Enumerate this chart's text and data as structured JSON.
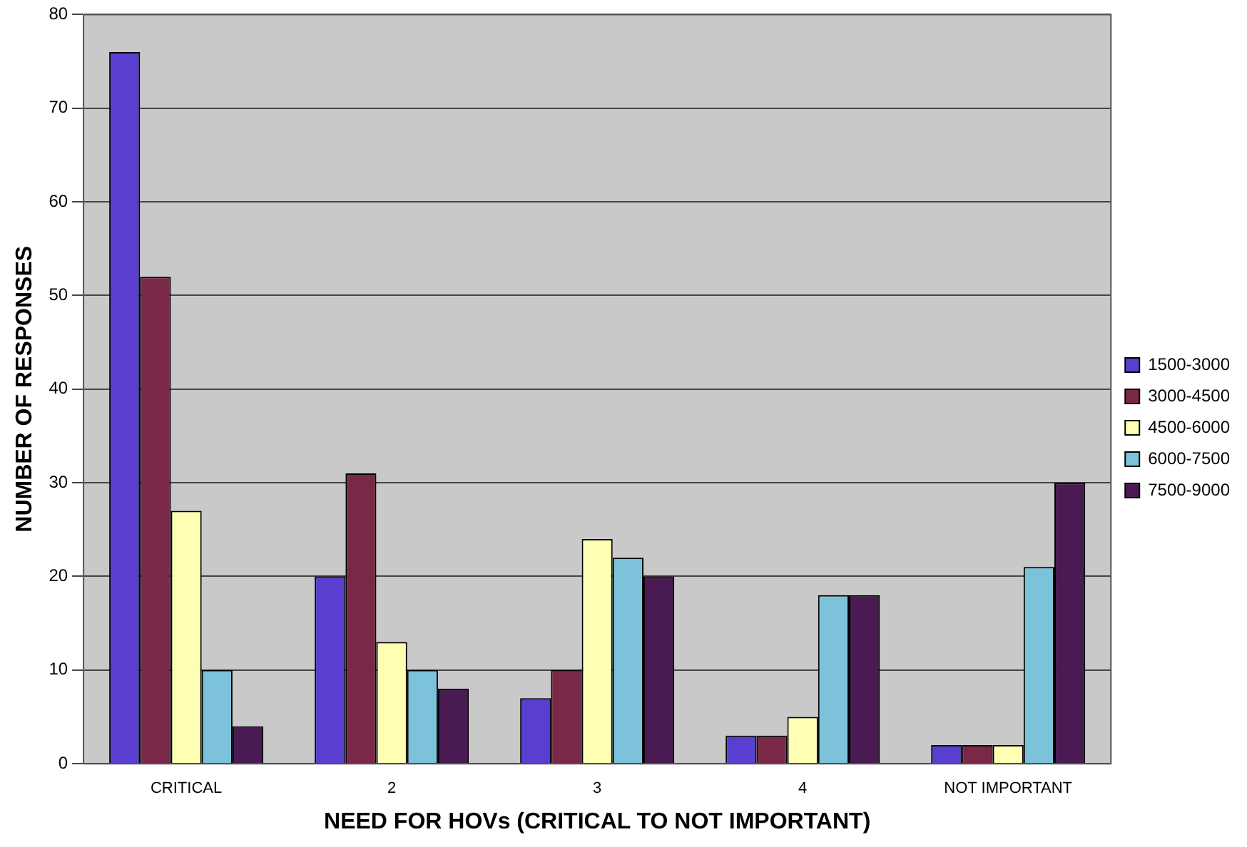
{
  "chart_data": {
    "type": "bar",
    "xlabel": "NEED FOR HOVs (CRITICAL TO NOT IMPORTANT)",
    "ylabel": "NUMBER OF RESPONSES",
    "categories": [
      "CRITICAL",
      "2",
      "3",
      "4",
      "NOT IMPORTANT"
    ],
    "series": [
      {
        "name": "1500-3000",
        "color": "#5a3ed0",
        "values": [
          76,
          20,
          7,
          3,
          2
        ]
      },
      {
        "name": "3000-4500",
        "color": "#7a2848",
        "values": [
          52,
          31,
          10,
          3,
          2
        ]
      },
      {
        "name": "4500-6000",
        "color": "#ffffb4",
        "values": [
          27,
          13,
          24,
          5,
          2
        ]
      },
      {
        "name": "6000-7500",
        "color": "#7cc2da",
        "values": [
          10,
          10,
          22,
          18,
          21
        ]
      },
      {
        "name": "7500-9000",
        "color": "#4a1a52",
        "values": [
          4,
          8,
          20,
          18,
          30
        ]
      }
    ],
    "ylim": [
      0,
      80
    ],
    "yticks": [
      0,
      10,
      20,
      30,
      40,
      50,
      60,
      70,
      80
    ],
    "grid": "y",
    "legend": "right"
  }
}
